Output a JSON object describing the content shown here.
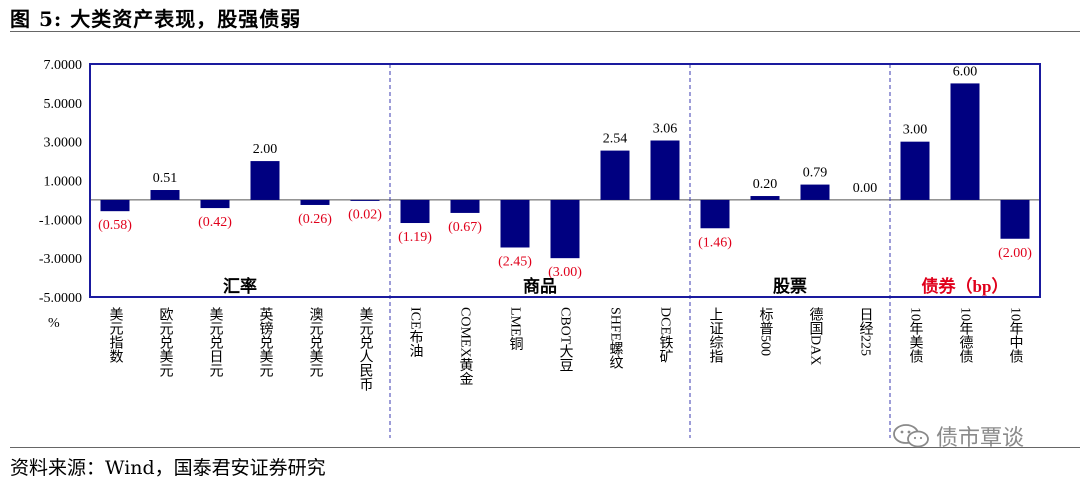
{
  "figure": {
    "title": "图 5:  大类资产表现，股强债弱",
    "source": "资料来源：Wind，国泰君安证券研究",
    "watermark": "债市覃谈",
    "watermark_icon": "wechat-icon"
  },
  "colors": {
    "bar": "#000080",
    "frame": "#1a1a9e",
    "positive_label": "#000000",
    "negative_label": "#e0001b",
    "bond_label": "#e0001b"
  },
  "chart_data": {
    "type": "bar",
    "unit_label": "%",
    "ylim": [
      -5,
      7
    ],
    "yticks": [
      7,
      5,
      3,
      1,
      -1,
      -3,
      -5
    ],
    "ytick_labels": [
      "7.0000",
      "5.0000",
      "3.0000",
      "1.0000",
      "-1.0000",
      "-3.0000",
      "-5.0000"
    ],
    "grid": false,
    "groups": [
      {
        "name": "汇率",
        "count": 6
      },
      {
        "name": "商品",
        "count": 6
      },
      {
        "name": "股票",
        "count": 4
      },
      {
        "name": "债券（bp）",
        "count": 3
      }
    ],
    "categories": [
      "美元指数",
      "欧元兑美元",
      "美元兑日元",
      "英镑兑美元",
      "澳元兑美元",
      "美元兑人民币",
      "ICE布油",
      "COMEX黄金",
      "LME铜",
      "CBOT大豆",
      "SHFE螺纹",
      "DCE铁矿",
      "上证综指",
      "标普500",
      "德国DAX",
      "日经225",
      "10年美债",
      "10年德债",
      "10年中债"
    ],
    "values": [
      -0.58,
      0.51,
      -0.42,
      2.0,
      -0.26,
      -0.02,
      -1.19,
      -0.67,
      -2.45,
      -3.0,
      2.54,
      3.06,
      -1.46,
      0.2,
      0.79,
      0.0,
      3.0,
      6.0,
      -2.0
    ],
    "value_labels": [
      "(0.58)",
      "0.51",
      "(0.42)",
      "2.00",
      "(0.26)",
      "(0.02)",
      "(1.19)",
      "(0.67)",
      "(2.45)",
      "(3.00)",
      "2.54",
      "3.06",
      "(1.46)",
      "0.20",
      "0.79",
      "0.00",
      "3.00",
      "6.00",
      "(2.00)"
    ]
  }
}
